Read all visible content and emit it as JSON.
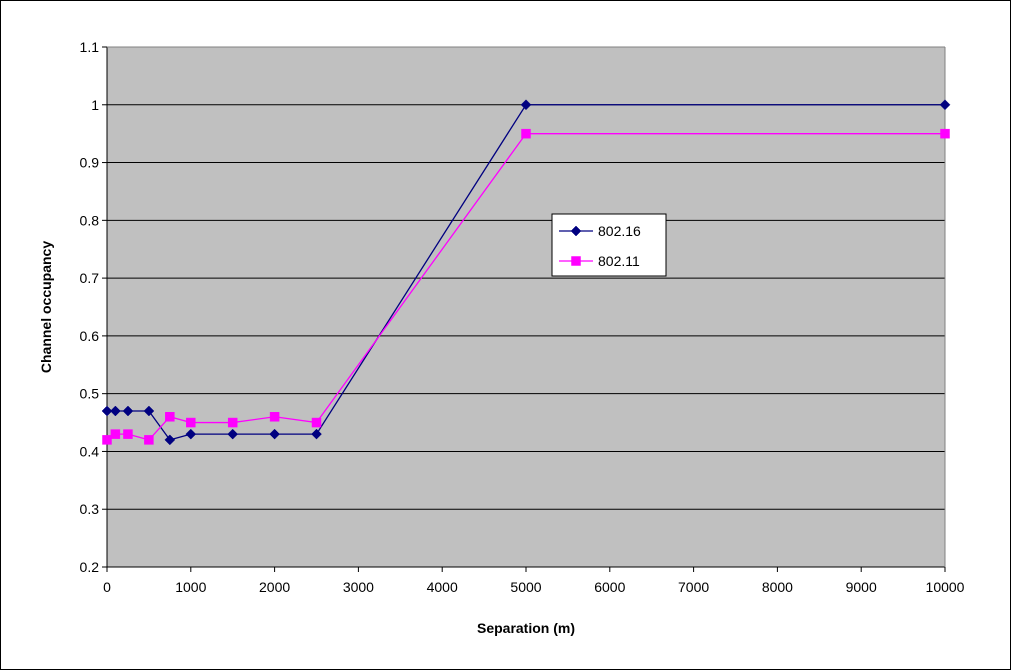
{
  "chart_data": {
    "type": "line",
    "title": "",
    "xlabel": "Separation (m)",
    "ylabel": "Channel occupancy",
    "xlim": [
      0,
      10000
    ],
    "ylim": [
      0.2,
      1.1
    ],
    "x_ticks": [
      0,
      1000,
      2000,
      3000,
      4000,
      5000,
      6000,
      7000,
      8000,
      9000,
      10000
    ],
    "y_ticks": [
      0.2,
      0.3,
      0.4,
      0.5,
      0.6,
      0.7,
      0.8,
      0.9,
      1,
      1.1
    ],
    "grid": "horizontal",
    "plot_background": "#C0C0C0",
    "legend_position": "center-right",
    "series": [
      {
        "name": "802.16",
        "color": "#000080",
        "marker": "diamond",
        "x": [
          0,
          100,
          250,
          500,
          750,
          1000,
          1500,
          2000,
          2500,
          5000,
          10000
        ],
        "y": [
          0.47,
          0.47,
          0.47,
          0.47,
          0.42,
          0.43,
          0.43,
          0.43,
          0.43,
          1.0,
          1.0
        ]
      },
      {
        "name": "802.11",
        "color": "#FF00FF",
        "marker": "square",
        "x": [
          0,
          100,
          250,
          500,
          750,
          1000,
          1500,
          2000,
          2500,
          5000,
          10000
        ],
        "y": [
          0.42,
          0.43,
          0.43,
          0.42,
          0.46,
          0.45,
          0.45,
          0.46,
          0.45,
          0.95,
          0.95
        ]
      }
    ]
  }
}
